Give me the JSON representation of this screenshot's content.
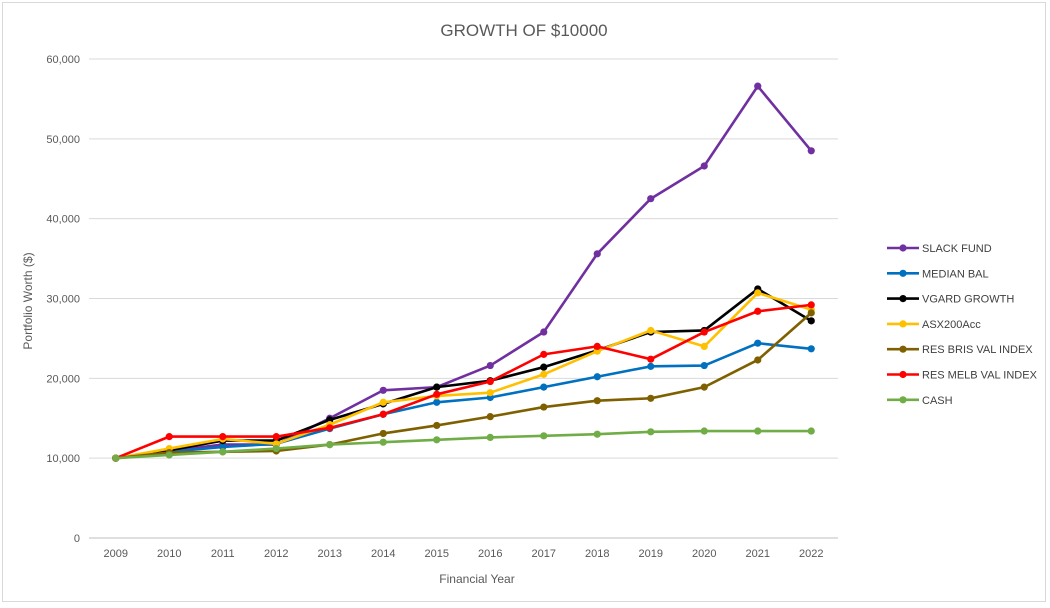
{
  "chart_data": {
    "type": "line",
    "title": "GROWTH OF $10000",
    "xlabel": "Financial Year",
    "ylabel": "Portfolio Worth ($)",
    "categories": [
      "2009",
      "2010",
      "2011",
      "2012",
      "2013",
      "2014",
      "2015",
      "2016",
      "2017",
      "2018",
      "2019",
      "2020",
      "2021",
      "2022"
    ],
    "ylim": [
      0,
      60000
    ],
    "yticks": [
      0,
      10000,
      20000,
      30000,
      40000,
      50000,
      60000
    ],
    "ytick_labels": [
      "0",
      "10,000",
      "20,000",
      "30,000",
      "40,000",
      "50,000",
      "60,000"
    ],
    "grid": true,
    "legend_position": "right",
    "series": [
      {
        "name": "SLACK FUND",
        "color": "#7030a0",
        "values": [
          10000,
          10900,
          11700,
          11700,
          15000,
          18500,
          18900,
          21600,
          25800,
          35600,
          42500,
          46600,
          56600,
          48500
        ]
      },
      {
        "name": "MEDIAN BAL",
        "color": "#0070c0",
        "values": [
          10000,
          10800,
          11400,
          11800,
          13700,
          15500,
          17000,
          17600,
          18900,
          20200,
          21500,
          21600,
          24400,
          23700
        ]
      },
      {
        "name": "VGARD GROWTH",
        "color": "#000000",
        "values": [
          10000,
          11000,
          12200,
          12200,
          14800,
          16800,
          18900,
          19700,
          21400,
          23500,
          25800,
          26000,
          31200,
          27200
        ]
      },
      {
        "name": "ASX200Acc",
        "color": "#ffc000",
        "values": [
          10000,
          11200,
          12400,
          11800,
          14200,
          17000,
          17800,
          18200,
          20500,
          23400,
          26000,
          24000,
          30700,
          28600
        ]
      },
      {
        "name": "RES BRIS VAL INDEX",
        "color": "#7f6000",
        "values": [
          10000,
          10700,
          10800,
          10900,
          11700,
          13100,
          14100,
          15200,
          16400,
          17200,
          17500,
          18900,
          22300,
          28200
        ]
      },
      {
        "name": "RES MELB VAL INDEX",
        "color": "#ff0000",
        "values": [
          10000,
          12700,
          12700,
          12700,
          13800,
          15500,
          18000,
          19600,
          23000,
          24000,
          22400,
          25800,
          28400,
          29200
        ]
      },
      {
        "name": "CASH",
        "color": "#70ad47",
        "values": [
          10000,
          10400,
          10800,
          11200,
          11700,
          12000,
          12300,
          12600,
          12800,
          13000,
          13300,
          13400,
          13400,
          13400
        ]
      }
    ]
  }
}
